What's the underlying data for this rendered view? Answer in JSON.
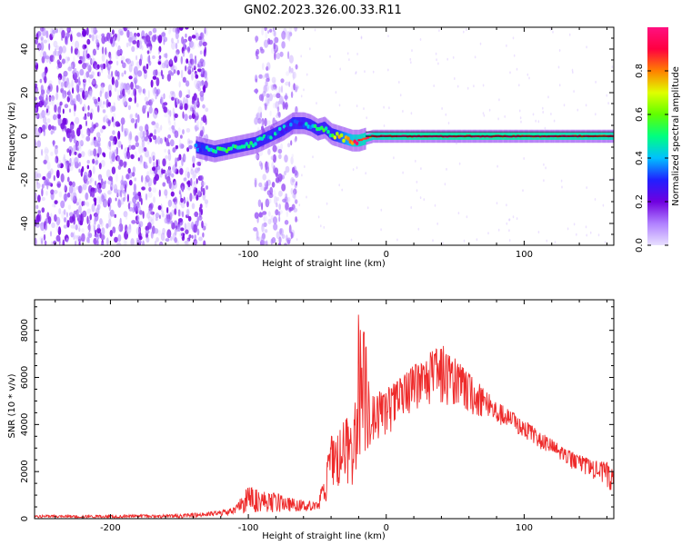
{
  "title": "GN02.2023.326.00.33.R11",
  "chart_data": [
    {
      "type": "heatmap",
      "xlabel": "Height of straight line (km)",
      "ylabel": "Frequency (Hz)",
      "xlim": [
        -255,
        165
      ],
      "ylim": [
        -50,
        50
      ],
      "x_ticks": [
        -200,
        -100,
        0,
        100
      ],
      "y_ticks": [
        -40,
        -20,
        0,
        20,
        40
      ],
      "colorbar": {
        "label": "Normalized spectral amplitude",
        "range": [
          0,
          1
        ],
        "ticks": [
          0.0,
          0.2,
          0.4,
          0.6,
          0.8
        ],
        "colormap": [
          "#e8e0ff",
          "#b080ff",
          "#7000e0",
          "#2020ff",
          "#00c0ff",
          "#00ff80",
          "#60ff00",
          "#e0ff00",
          "#ff8000",
          "#ff0040",
          "#ff1080"
        ]
      },
      "ridge": {
        "x": [
          -138,
          -125,
          -110,
          -95,
          -85,
          -75,
          -68,
          -60,
          -55,
          -50,
          -45,
          -40,
          -35,
          -30,
          -25,
          -20,
          -10,
          0,
          20,
          50,
          100,
          165
        ],
        "frequency": [
          -5,
          -7,
          -5,
          -3,
          0,
          3,
          6,
          6,
          5,
          3,
          4,
          1,
          0,
          -1,
          -2,
          -2,
          0,
          0,
          0,
          0,
          0,
          0
        ],
        "amplitude": [
          0.35,
          0.45,
          0.5,
          0.45,
          0.4,
          0.35,
          0.3,
          0.35,
          0.45,
          0.5,
          0.5,
          0.55,
          0.65,
          0.75,
          0.85,
          0.9,
          0.9,
          0.92,
          0.95,
          0.95,
          0.95,
          0.92
        ]
      },
      "background_noise_regions": [
        {
          "x_range": [
            -255,
            -130
          ],
          "amplitude": "low (0.0-0.2)"
        },
        {
          "x_range": [
            -95,
            -65
          ],
          "amplitude": "low (0.0-0.15)"
        }
      ]
    },
    {
      "type": "line",
      "xlabel": "Height of straight line (km)",
      "ylabel": "SNR (10 * v/v)",
      "xlim": [
        -255,
        165
      ],
      "ylim": [
        0,
        9300
      ],
      "x_ticks": [
        -200,
        -100,
        0,
        100
      ],
      "y_ticks": [
        0,
        2000,
        4000,
        6000,
        8000
      ],
      "series": [
        {
          "color": "#ee2a2a",
          "envelope": {
            "x": [
              -255,
              -200,
              -150,
              -120,
              -110,
              -100,
              -90,
              -80,
              -70,
              -60,
              -50,
              -45,
              -40,
              -35,
              -30,
              -25,
              -22,
              -20,
              -15,
              -10,
              0,
              10,
              20,
              30,
              40,
              50,
              60,
              70,
              80,
              90,
              100,
              110,
              120,
              130,
              140,
              150,
              160,
              165
            ],
            "low": [
              30,
              30,
              30,
              100,
              200,
              250,
              300,
              250,
              300,
              300,
              300,
              400,
              1000,
              1200,
              1500,
              1200,
              2000,
              2600,
              2600,
              3200,
              3500,
              4000,
              4400,
              4800,
              4800,
              4700,
              4400,
              4300,
              4000,
              3800,
              3400,
              3000,
              2700,
              2300,
              1900,
              1700,
              1300,
              1000
            ],
            "high": [
              150,
              150,
              180,
              350,
              500,
              1400,
              1200,
              1100,
              900,
              800,
              700,
              1800,
              3500,
              4000,
              4500,
              4200,
              5200,
              9300,
              8000,
              5200,
              5600,
              6000,
              6600,
              7000,
              7500,
              6800,
              6200,
              5600,
              5000,
              4600,
              4200,
              3800,
              3400,
              3000,
              2700,
              2500,
              2400,
              2000
            ]
          }
        }
      ]
    }
  ]
}
